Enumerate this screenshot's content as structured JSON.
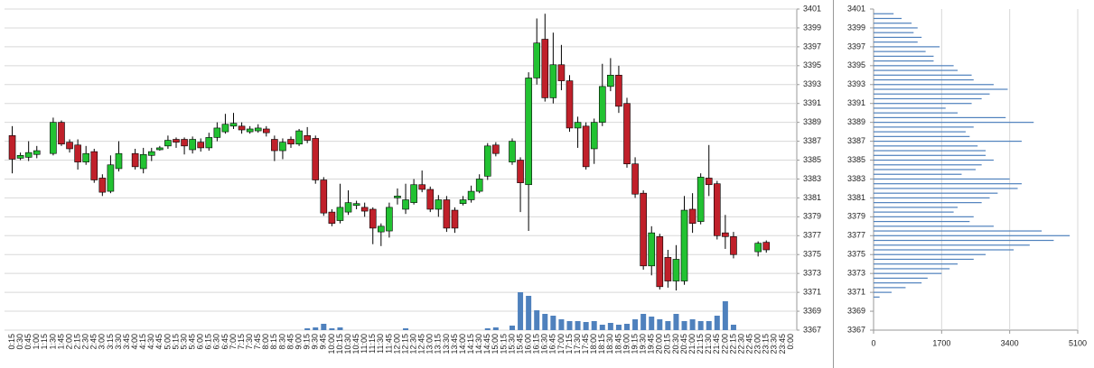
{
  "chart_data": [
    {
      "type": "candlestick",
      "categories": [
        "0:15",
        "0:30",
        "0:45",
        "1:00",
        "1:15",
        "1:30",
        "1:45",
        "2:00",
        "2:15",
        "2:30",
        "2:45",
        "3:00",
        "3:15",
        "3:30",
        "3:45",
        "4:00",
        "4:15",
        "4:30",
        "4:45",
        "5:00",
        "5:15",
        "5:30",
        "5:45",
        "6:00",
        "6:15",
        "6:30",
        "6:45",
        "7:00",
        "7:15",
        "7:30",
        "7:45",
        "8:00",
        "8:15",
        "8:30",
        "8:45",
        "9:00",
        "9:15",
        "9:30",
        "9:45",
        "10:00",
        "10:15",
        "10:30",
        "10:45",
        "11:00",
        "11:15",
        "11:30",
        "11:45",
        "12:00",
        "12:15",
        "12:30",
        "12:45",
        "13:00",
        "13:15",
        "13:30",
        "13:45",
        "14:00",
        "14:15",
        "14:30",
        "14:45",
        "15:00",
        "15:15",
        "15:30",
        "15:45",
        "16:00",
        "16:15",
        "16:30",
        "16:45",
        "17:00",
        "17:15",
        "17:30",
        "17:45",
        "18:00",
        "18:15",
        "18:30",
        "18:45",
        "19:00",
        "19:15",
        "19:30",
        "19:45",
        "20:00",
        "20:15",
        "20:30",
        "20:45",
        "21:00",
        "21:15",
        "21:30",
        "21:45",
        "22:00",
        "22:15",
        "22:30",
        "22:45",
        "23:00",
        "23:15",
        "23:30",
        "23:45",
        "0:00"
      ],
      "open": [
        3387.6,
        3385.2,
        3385.3,
        3385.6,
        null,
        3385.7,
        3389,
        3386.9,
        3386.6,
        3384.8,
        3385.9,
        3383.1,
        3381.7,
        3384.1,
        null,
        3385.7,
        3384.1,
        3385.5,
        3386.1,
        3386.5,
        3387.2,
        3387.2,
        3386.1,
        3386.9,
        3386.3,
        3387.4,
        3388,
        3388.6,
        3388.6,
        3388,
        3388.1,
        3388.3,
        3387.2,
        3386,
        3387.2,
        3386.7,
        3387.6,
        3387.3,
        3382.9,
        3379.5,
        3378.6,
        3379.5,
        3380.2,
        3380,
        3379.8,
        3377.4,
        3377.5,
        3381,
        3379.8,
        3380.5,
        3382.4,
        3381.9,
        3379.8,
        3380.8,
        3379.7,
        3380.4,
        3380.8,
        3381.7,
        3383.3,
        3386.6,
        null,
        3384.8,
        3385,
        3382.4,
        3393.7,
        3397.8,
        3391.6,
        3395.1,
        3393.4,
        3388.4,
        3388.6,
        3386.2,
        3389,
        3392.8,
        3394,
        3391,
        3384.6,
        3381.5,
        3373.8,
        3376.9,
        3374.7,
        3372.2,
        3372.2,
        3379.8,
        3378.5,
        3383.1,
        3382.5,
        3377.3,
        3376.9,
        null,
        null,
        3375.3,
        3376.3,
        null,
        null,
        null
      ],
      "high": [
        3388.6,
        3385.8,
        3387,
        3386.5,
        null,
        3389.5,
        3389.2,
        3387.2,
        3387.2,
        3386.5,
        3386.2,
        3383.5,
        3385.5,
        3387,
        null,
        3386.2,
        3386.3,
        3386.3,
        3386.5,
        3387.6,
        3387.4,
        3387.4,
        3387.5,
        3387.3,
        3387.9,
        3389,
        3389.9,
        3390,
        3389,
        3388.6,
        3388.8,
        3388.6,
        3387.6,
        3387.3,
        3387.5,
        3388.3,
        3388.5,
        3387.6,
        3383.2,
        3379.8,
        3382.5,
        3381.8,
        3380.7,
        3380.5,
        3380,
        3378.3,
        3380.5,
        3382,
        3382.5,
        3383,
        3383.9,
        3382.2,
        3381.3,
        3381.2,
        3380,
        3381.2,
        3382.3,
        3383.5,
        3386.8,
        3386.9,
        null,
        3387.3,
        3385.3,
        3394.3,
        3400,
        3400.5,
        3398.5,
        3397.2,
        3394,
        3389.6,
        3389,
        3389.4,
        3395.2,
        3395.8,
        3395,
        3391.6,
        3385.3,
        3381.8,
        3378,
        3377.2,
        3375.5,
        3376,
        3381.2,
        3381.5,
        3383.6,
        3386.6,
        3382.8,
        3379.2,
        3377.4,
        null,
        null,
        3376.4,
        3376.5,
        null,
        null,
        null
      ],
      "low": [
        3383.6,
        3385,
        3384.9,
        3385.2,
        null,
        3385.5,
        3386.5,
        3385.8,
        3384,
        3384.5,
        3382.6,
        3381.2,
        3381.5,
        3383.8,
        null,
        3384,
        3383.6,
        3384.9,
        3386,
        3386.2,
        3386.3,
        3385.6,
        3385.7,
        3385.9,
        3386,
        3387,
        3387.8,
        3388.3,
        3387.8,
        3387.8,
        3387.9,
        3387.5,
        3384.9,
        3385.1,
        3386.3,
        3386.5,
        3386.8,
        3382.5,
        3379.1,
        3378,
        3378.3,
        3379.2,
        3379.8,
        3379,
        3376.1,
        3375.9,
        3376.8,
        3380.3,
        3379.3,
        3380.3,
        3381.6,
        3379.5,
        3379,
        3377.4,
        3377.3,
        3380.2,
        3380.5,
        3381.5,
        3382.9,
        3385.4,
        null,
        3384.5,
        3379.5,
        3377.5,
        3393,
        3391.2,
        3391,
        3392.4,
        3388,
        3386.3,
        3384,
        3384.6,
        3388.6,
        3392.3,
        3390,
        3384.2,
        3381,
        3373.4,
        3372.8,
        3371.3,
        3371.5,
        3371.2,
        3371.8,
        3377.3,
        3378.2,
        3381.2,
        3376.6,
        3375.6,
        3374.6,
        null,
        null,
        3374.8,
        3375.2,
        null,
        null,
        null
      ],
      "close": [
        3385.1,
        3385.5,
        3385.8,
        3386,
        null,
        3389,
        3386.7,
        3386.2,
        3384.8,
        3385.7,
        3382.9,
        3381.6,
        3384.5,
        3385.7,
        null,
        3384.3,
        3385.6,
        3385.9,
        3386.3,
        3387.1,
        3386.9,
        3386.5,
        3387.2,
        3386.3,
        3387.4,
        3388.4,
        3388.8,
        3388.9,
        3388.2,
        3388.3,
        3388.4,
        3387.9,
        3386,
        3386.9,
        3386.7,
        3388.1,
        3387.1,
        3382.9,
        3379.4,
        3378.3,
        3380,
        3380.5,
        3380.4,
        3379.6,
        3377.8,
        3378,
        3380,
        3381.2,
        3380.8,
        3382.4,
        3381.9,
        3379.8,
        3380.8,
        3377.8,
        3377.8,
        3380.8,
        3381.7,
        3383,
        3386.5,
        3385.7,
        null,
        3387,
        3382.6,
        3393.7,
        3397.4,
        3391.6,
        3395.1,
        3393.4,
        3388.4,
        3389,
        3384.3,
        3389,
        3392.8,
        3394,
        3390.7,
        3384.6,
        3381.4,
        3373.8,
        3377.3,
        3371.6,
        3372.2,
        3374.5,
        3379.7,
        3378.3,
        3383.2,
        3382.4,
        3377,
        3376.9,
        3375,
        null,
        null,
        3376.2,
        3375.5,
        null,
        null,
        null
      ],
      "volume": [
        0,
        0,
        0,
        0,
        0,
        0,
        0,
        0,
        0,
        0,
        0,
        0,
        0,
        0,
        0,
        0,
        0,
        0,
        0,
        0,
        0,
        0,
        0,
        0,
        0,
        0,
        0,
        0,
        0,
        0,
        0,
        0,
        0,
        0,
        0,
        0,
        2,
        3,
        7,
        2,
        3,
        0,
        0,
        0,
        0,
        0,
        0,
        0,
        2,
        0,
        0,
        0,
        0,
        0,
        0,
        0,
        0,
        0,
        2,
        3,
        0,
        5,
        42,
        38,
        22,
        18,
        16,
        12,
        10,
        10,
        9,
        10,
        6,
        8,
        6,
        7,
        12,
        18,
        15,
        12,
        10,
        18,
        10,
        12,
        10,
        10,
        16,
        32,
        6,
        0,
        0,
        0,
        0,
        0,
        0,
        0
      ],
      "up_color": "#22c232",
      "down_color": "#c0202a",
      "volume_color": "#4f81bd",
      "ylim": [
        3367,
        3401
      ],
      "yticks": [
        3367,
        3369,
        3371,
        3373,
        3375,
        3377,
        3379,
        3381,
        3383,
        3385,
        3387,
        3389,
        3391,
        3393,
        3395,
        3397,
        3399,
        3401
      ],
      "grid": true
    },
    {
      "type": "barh",
      "categories": [
        3370.5,
        3371,
        3371.5,
        3372,
        3372.5,
        3373,
        3373.5,
        3374,
        3374.5,
        3375,
        3375.5,
        3376,
        3376.5,
        3377,
        3377.5,
        3378,
        3378.5,
        3379,
        3379.5,
        3380,
        3380.5,
        3381,
        3381.5,
        3382,
        3382.5,
        3383,
        3383.5,
        3384,
        3384.5,
        3385,
        3385.5,
        3386,
        3386.5,
        3387,
        3387.5,
        3388,
        3388.5,
        3389,
        3389.5,
        3390,
        3390.5,
        3391,
        3391.5,
        3392,
        3392.5,
        3393,
        3393.5,
        3394,
        3394.5,
        3395,
        3395.5,
        3396,
        3396.5,
        3397,
        3397.5,
        3398,
        3398.5,
        3399,
        3399.5,
        3400,
        3400.5
      ],
      "values": [
        150,
        450,
        800,
        1200,
        1350,
        1700,
        1900,
        2100,
        2500,
        2800,
        3500,
        3900,
        4500,
        4900,
        4200,
        3000,
        2400,
        2500,
        2000,
        2100,
        2700,
        2900,
        3100,
        3600,
        3700,
        3400,
        2200,
        2550,
        2700,
        3000,
        2800,
        2800,
        2600,
        3700,
        2400,
        2300,
        2500,
        4000,
        3300,
        2100,
        1800,
        2450,
        2700,
        2900,
        3350,
        3000,
        2500,
        2450,
        2100,
        2000,
        1500,
        1500,
        1300,
        1650,
        1100,
        1200,
        1000,
        1100,
        950,
        700,
        500
      ],
      "color": "#4f81bd",
      "xlim": [
        0,
        5100
      ],
      "xticks": [
        0,
        1700,
        3400,
        5100
      ],
      "ylim": [
        3367,
        3401
      ],
      "yticks": [
        3367,
        3369,
        3371,
        3373,
        3375,
        3377,
        3379,
        3381,
        3383,
        3385,
        3387,
        3389,
        3391,
        3393,
        3395,
        3397,
        3399,
        3401
      ],
      "grid": true
    }
  ]
}
